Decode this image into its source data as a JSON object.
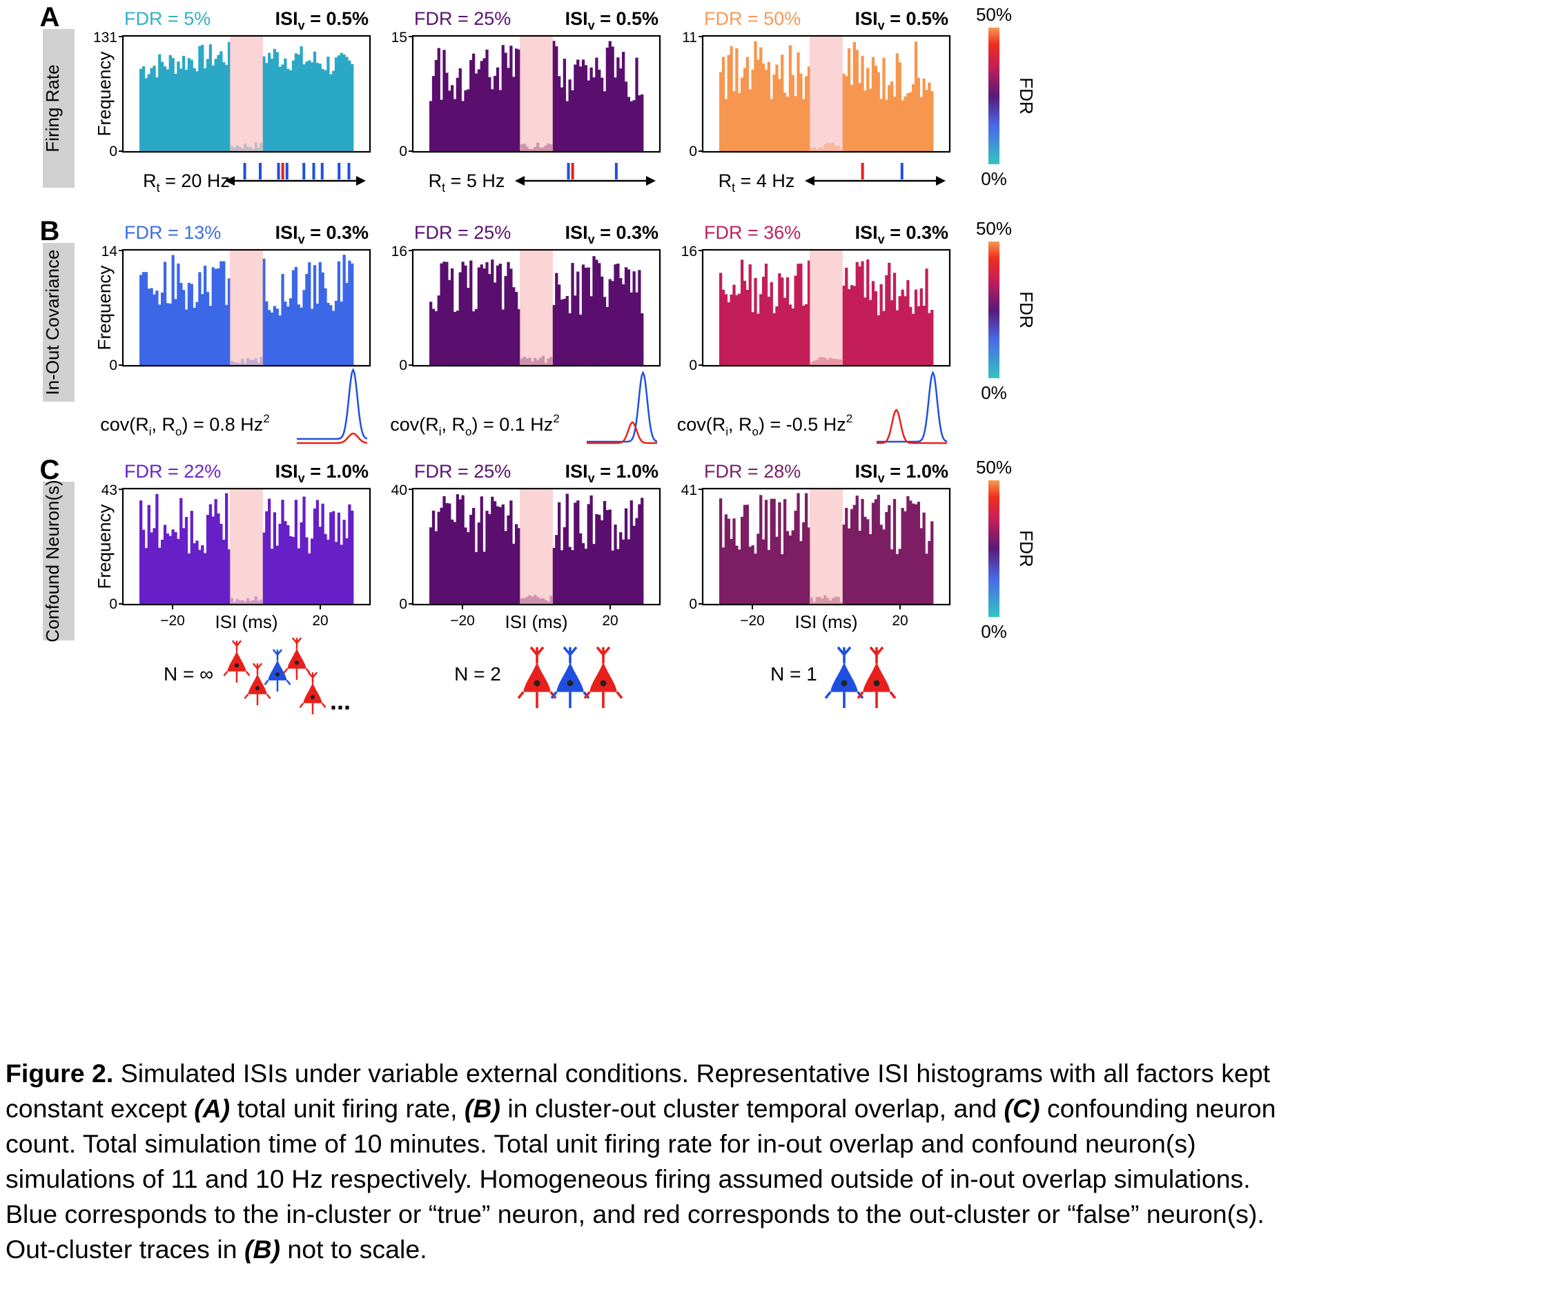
{
  "panels": [
    {
      "letter": "A",
      "side_label": "Firing Rate",
      "colorbar": {
        "top": "50%",
        "bottom": "0%",
        "label": "FDR"
      },
      "plots": [
        {
          "fdr_label": "FDR = 5%",
          "fdr_color": "#2fb0c8",
          "isi_label": "ISI",
          "isi_sub": "v",
          "isi_value": " = 0.5%",
          "bar_color": "#2ba8c6",
          "ymax_label": "131",
          "ymax": 131,
          "ymin_label": "0",
          "rt_label": "R",
          "rt_sub": "t",
          "rt_value": " = 20 Hz"
        },
        {
          "fdr_label": "FDR = 25%",
          "fdr_color": "#5a1070",
          "isi_label": "ISI",
          "isi_sub": "v",
          "isi_value": " = 0.5%",
          "bar_color": "#5a0f6e",
          "ymax_label": "15",
          "ymax": 15,
          "ymin_label": "0",
          "rt_label": "R",
          "rt_sub": "t",
          "rt_value": " = 5 Hz"
        },
        {
          "fdr_label": "FDR = 50%",
          "fdr_color": "#f79a55",
          "isi_label": "ISI",
          "isi_sub": "v",
          "isi_value": " = 0.5%",
          "bar_color": "#f7964f",
          "ymax_label": "11",
          "ymax": 11,
          "ymin_label": "0",
          "rt_label": "R",
          "rt_sub": "t",
          "rt_value": " = 4 Hz"
        }
      ]
    },
    {
      "letter": "B",
      "side_label": "In-Out Covariance",
      "colorbar": {
        "top": "50%",
        "bottom": "0%",
        "label": "FDR"
      },
      "plots": [
        {
          "fdr_label": "FDR = 13%",
          "fdr_color": "#3c6ee6",
          "isi_label": "ISI",
          "isi_sub": "v",
          "isi_value": " = 0.3%",
          "bar_color": "#3c68e8",
          "ymax_label": "14",
          "ymax": 14,
          "ymin_label": "0",
          "cov_pre": "cov(R",
          "cov_sub_i": "i",
          "cov_mid": ", R",
          "cov_sub_o": "o",
          "cov_post": ") = 0.8 Hz",
          "cov_sup": "2"
        },
        {
          "fdr_label": "FDR = 25%",
          "fdr_color": "#5a1070",
          "isi_label": "ISI",
          "isi_sub": "v",
          "isi_value": " = 0.3%",
          "bar_color": "#5a0f6e",
          "ymax_label": "16",
          "ymax": 16,
          "ymin_label": "0",
          "cov_pre": "cov(R",
          "cov_sub_i": "i",
          "cov_mid": ", R",
          "cov_sub_o": "o",
          "cov_post": ") = 0.1 Hz",
          "cov_sup": "2"
        },
        {
          "fdr_label": "FDR = 36%",
          "fdr_color": "#c0205a",
          "isi_label": "ISI",
          "isi_sub": "v",
          "isi_value": " = 0.3%",
          "bar_color": "#c41e58",
          "ymax_label": "16",
          "ymax": 16,
          "ymin_label": "0",
          "cov_pre": "cov(R",
          "cov_sub_i": "i",
          "cov_mid": ", R",
          "cov_sub_o": "o",
          "cov_post": ") = -0.5 Hz",
          "cov_sup": "2"
        }
      ]
    },
    {
      "letter": "C",
      "side_label": "Confound Neuron(s)",
      "colorbar": {
        "top": "50%",
        "bottom": "0%",
        "label": "FDR"
      },
      "plots": [
        {
          "fdr_label": "FDR = 22%",
          "fdr_color": "#6a22c8",
          "isi_label": "ISI",
          "isi_sub": "v",
          "isi_value": " = 1.0%",
          "bar_color": "#6720c8",
          "ymax_label": "43",
          "ymax": 43,
          "ymin_label": "0",
          "xticks": [
            "−20",
            "20"
          ],
          "xlabel": "ISI (ms)",
          "n_label": "N = ∞",
          "ellipsis": "..."
        },
        {
          "fdr_label": "FDR = 25%",
          "fdr_color": "#5a1070",
          "isi_label": "ISI",
          "isi_sub": "v",
          "isi_value": " = 1.0%",
          "bar_color": "#5a0f6e",
          "ymax_label": "40",
          "ymax": 40,
          "ymin_label": "0",
          "xticks": [
            "−20",
            "20"
          ],
          "xlabel": "ISI (ms)",
          "n_label": "N = 2"
        },
        {
          "fdr_label": "FDR = 28%",
          "fdr_color": "#7a1c6a",
          "isi_label": "ISI",
          "isi_sub": "v",
          "isi_value": " = 1.0%",
          "bar_color": "#7d1e64",
          "ymax_label": "41",
          "ymax": 41,
          "ymin_label": "0",
          "xticks": [
            "−20",
            "20"
          ],
          "xlabel": "ISI (ms)",
          "n_label": "N = 1"
        }
      ]
    }
  ],
  "y_axis_label": "Frequency",
  "colors": {
    "in_cluster": "#1f4fe0",
    "out_cluster": "#e8201c",
    "refractory_band": "#f9c5c5",
    "side_box": "#d0d0d0"
  },
  "caption": {
    "title": "Figure 2.",
    "line1": " Simulated ISIs under variable external conditions. Representative ISI histograms with all factors kept",
    "line2a": "constant except ",
    "A": "(A)",
    "line2b": " total unit firing rate, ",
    "B": "(B)",
    "line2c": " in cluster-out cluster temporal overlap, and ",
    "C": "(C)",
    "line2d": " confounding neuron",
    "line3": "count. Total simulation time of 10 minutes. Total unit firing rate for in-out overlap and confound neuron(s)",
    "line4": "simulations of 11 and 10 Hz respectively. Homogeneous firing assumed outside of in-out overlap simulations.",
    "line5": "Blue corresponds to the in-cluster or “true” neuron, and red corresponds to the out-cluster or “false” neuron(s).",
    "line6a": "Out-cluster traces in ",
    "B2": "(B)",
    "line6b": " not to scale."
  }
}
